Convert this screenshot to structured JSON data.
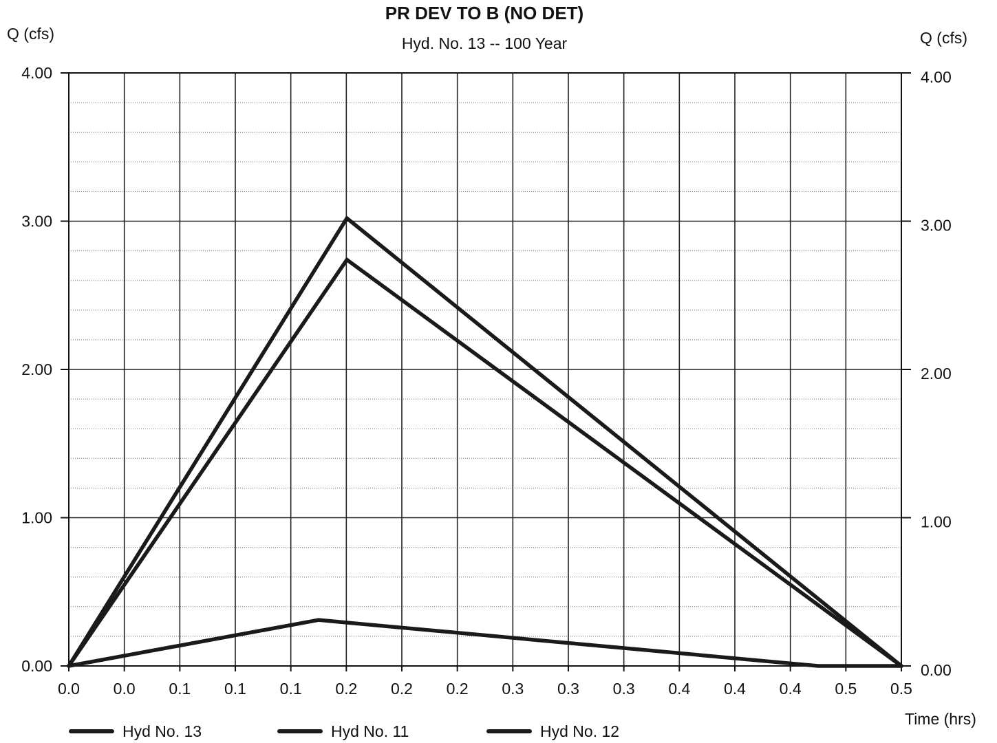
{
  "chart_data": {
    "type": "line",
    "title": "PR DEV TO B (NO DET)",
    "subtitle": "Hyd. No. 13 -- 100 Year",
    "ylabel_left": "Q (cfs)",
    "ylabel_right": "Q (cfs)",
    "xlabel": "Time (hrs)",
    "ylim": [
      0,
      4
    ],
    "xlim": [
      0,
      0.5
    ],
    "y_ticks": [
      "0.00",
      "1.00",
      "2.00",
      "3.00",
      "4.00"
    ],
    "x_tick_labels": [
      "0.0",
      "0.0",
      "0.1",
      "0.1",
      "0.1",
      "0.2",
      "0.2",
      "0.2",
      "0.3",
      "0.3",
      "0.3",
      "0.4",
      "0.4",
      "0.4",
      "0.5",
      "0.5"
    ],
    "grid": true,
    "legend_position": "bottom-left",
    "series": [
      {
        "name": "Hyd No. 13",
        "x": [
          0,
          0.167,
          0.5
        ],
        "y": [
          0,
          3.02,
          0
        ]
      },
      {
        "name": "Hyd No. 11",
        "x": [
          0,
          0.167,
          0.5
        ],
        "y": [
          0,
          2.74,
          0
        ]
      },
      {
        "name": "Hyd No. 12",
        "x": [
          0,
          0.15,
          0.45,
          0.5
        ],
        "y": [
          0,
          0.31,
          0,
          0
        ]
      }
    ]
  }
}
